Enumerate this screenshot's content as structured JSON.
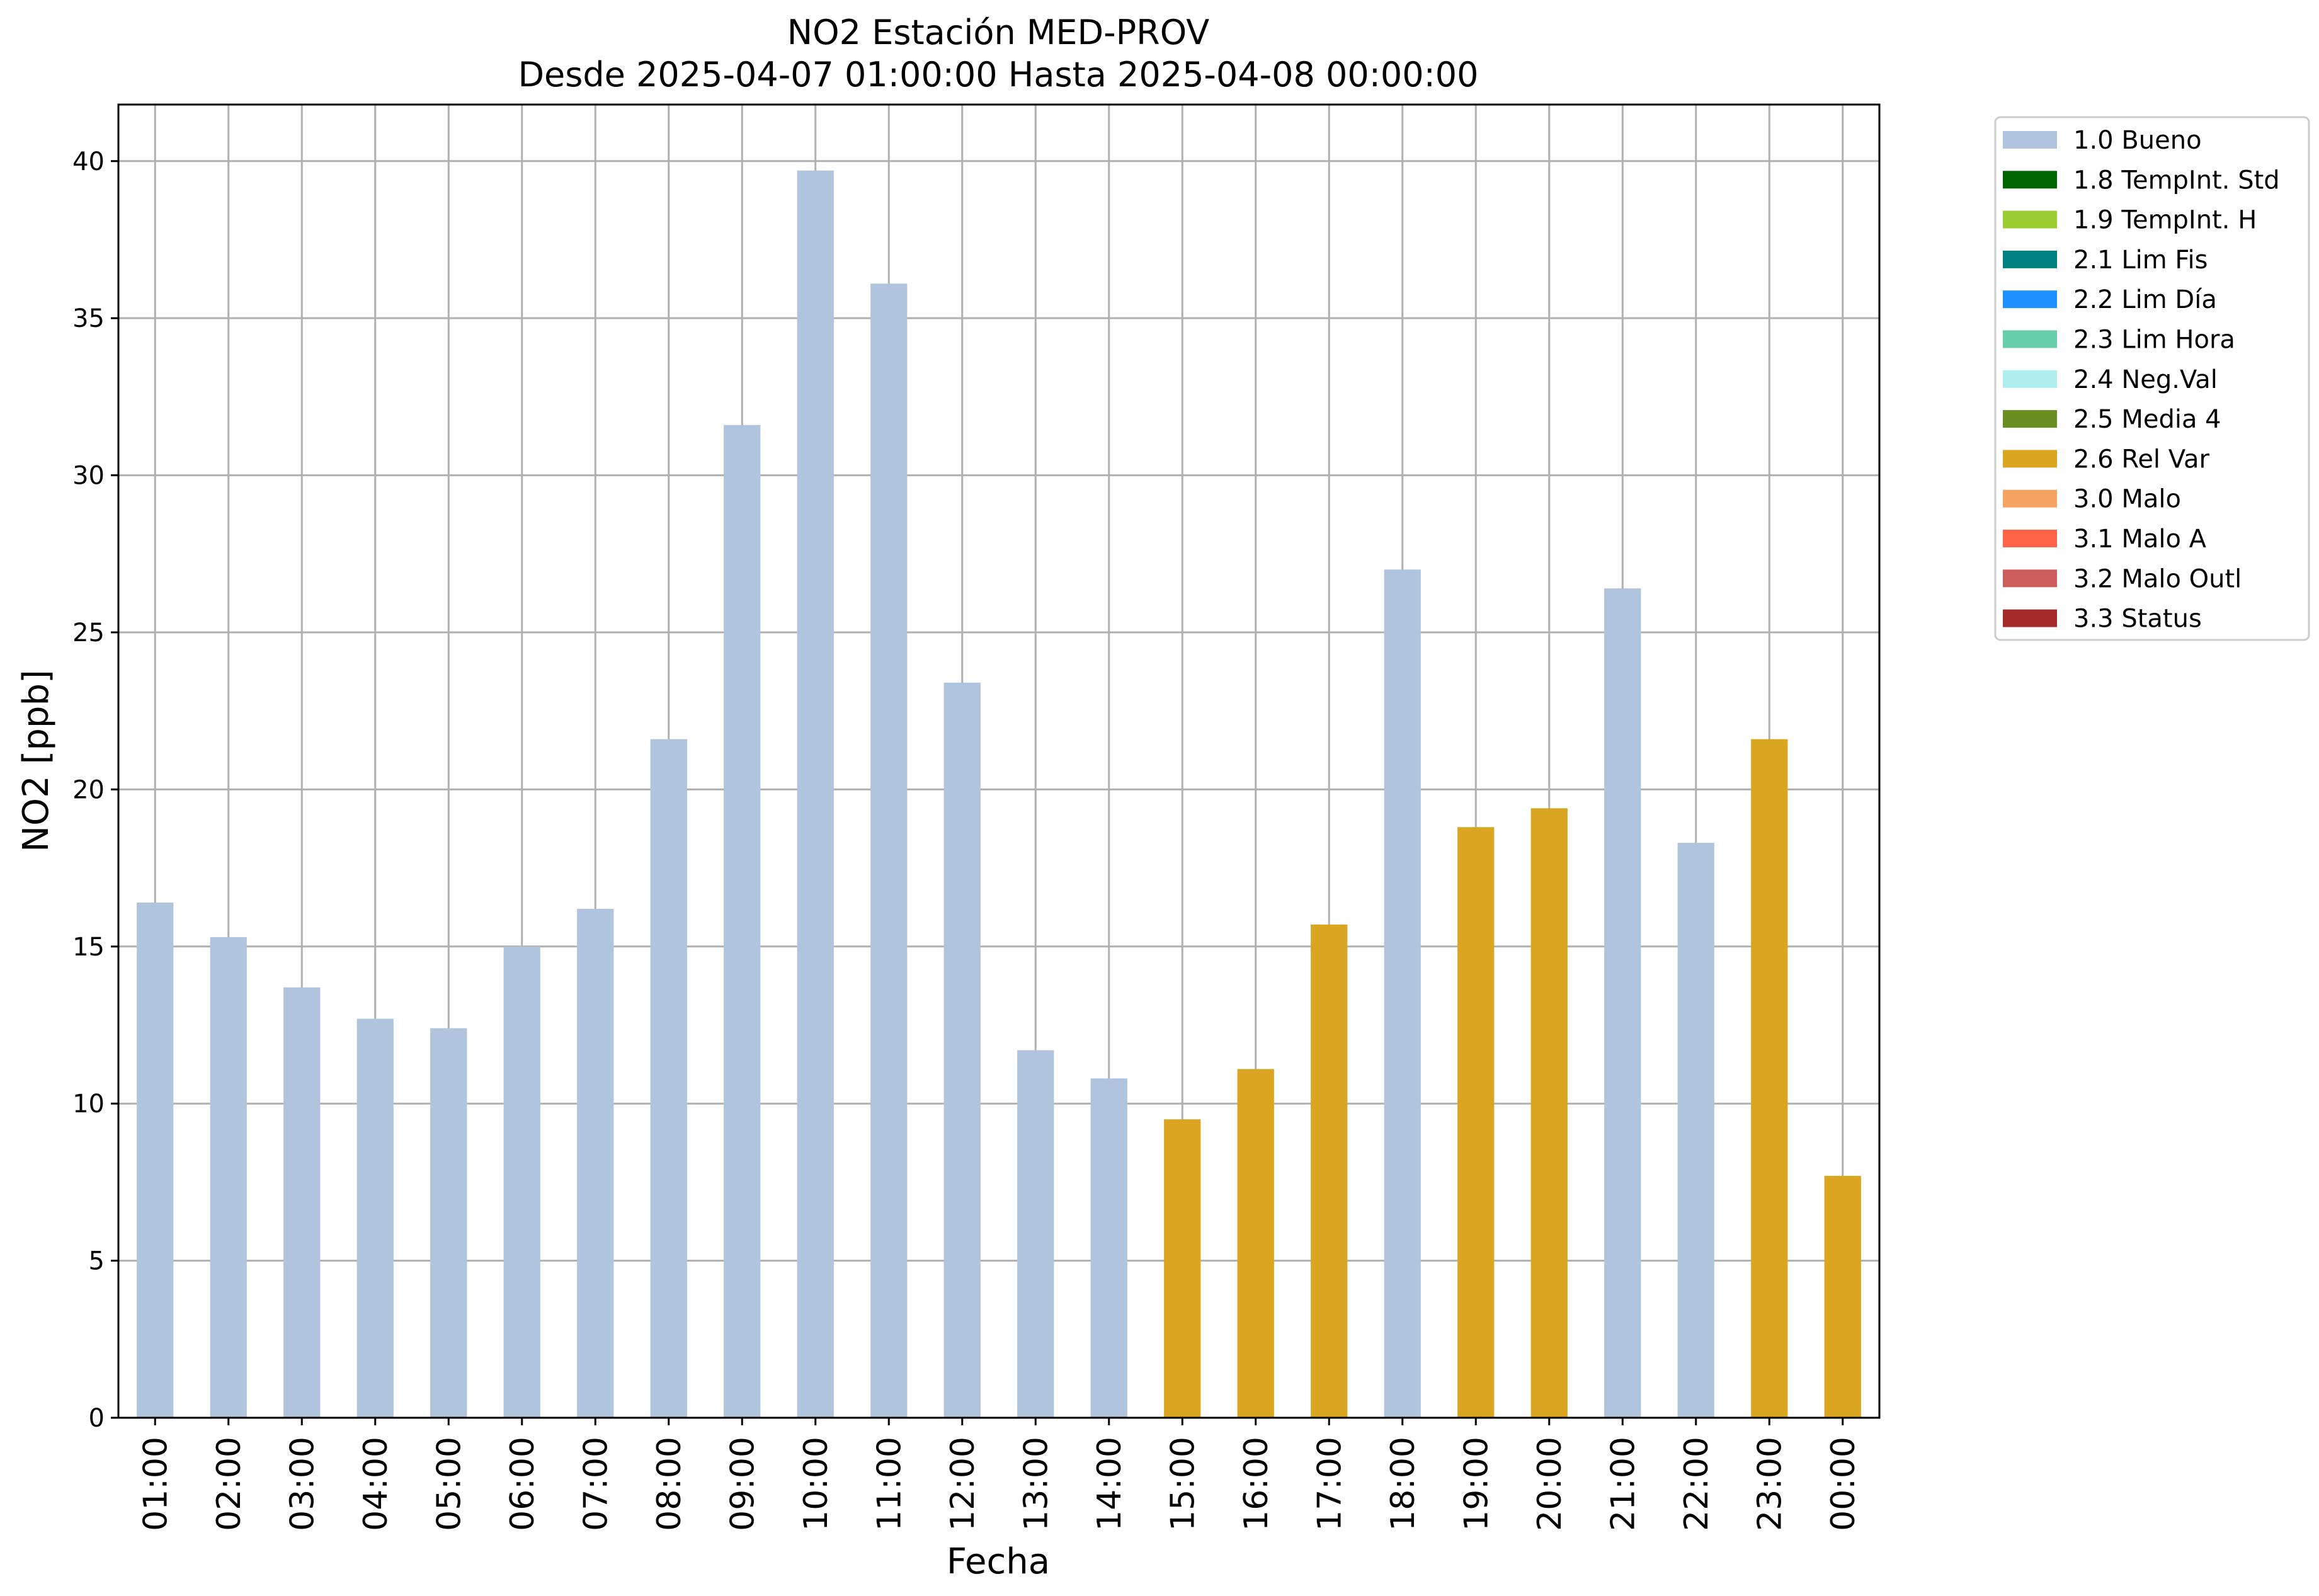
{
  "chart_data": {
    "type": "bar",
    "title": "NO2 Estación MED-PROV",
    "subtitle": "Desde 2025-04-07 01:00:00 Hasta 2025-04-08 00:00:00",
    "xlabel": "Fecha",
    "ylabel": "NO2 [ppb]",
    "ylim": [
      0,
      41.8
    ],
    "yticks": [
      0,
      5,
      10,
      15,
      20,
      25,
      30,
      35,
      40
    ],
    "grid": true,
    "legend_position": "outside-top-right",
    "categories": [
      "01:00",
      "02:00",
      "03:00",
      "04:00",
      "05:00",
      "06:00",
      "07:00",
      "08:00",
      "09:00",
      "10:00",
      "11:00",
      "12:00",
      "13:00",
      "14:00",
      "15:00",
      "16:00",
      "17:00",
      "18:00",
      "19:00",
      "20:00",
      "21:00",
      "22:00",
      "23:00",
      "00:00"
    ],
    "values": [
      16.4,
      15.3,
      13.7,
      12.7,
      12.4,
      15.0,
      16.2,
      21.6,
      31.6,
      39.7,
      36.1,
      23.4,
      11.7,
      10.8,
      9.5,
      11.1,
      15.7,
      27.0,
      18.8,
      19.4,
      26.4,
      18.3,
      21.6,
      7.7
    ],
    "flags": [
      "1.0 Bueno",
      "1.0 Bueno",
      "1.0 Bueno",
      "1.0 Bueno",
      "1.0 Bueno",
      "1.0 Bueno",
      "1.0 Bueno",
      "1.0 Bueno",
      "1.0 Bueno",
      "1.0 Bueno",
      "1.0 Bueno",
      "1.0 Bueno",
      "1.0 Bueno",
      "1.0 Bueno",
      "2.6 Rel Var",
      "2.6 Rel Var",
      "2.6 Rel Var",
      "1.0 Bueno",
      "2.6 Rel Var",
      "2.6 Rel Var",
      "1.0 Bueno",
      "1.0 Bueno",
      "2.6 Rel Var",
      "2.6 Rel Var"
    ],
    "legend": [
      {
        "name": "1.0 Bueno",
        "color": "#b0c4de"
      },
      {
        "name": "1.8 TempInt. Std",
        "color": "#006400"
      },
      {
        "name": "1.9 TempInt. H",
        "color": "#9acd32"
      },
      {
        "name": "2.1 Lim Fis",
        "color": "#008080"
      },
      {
        "name": "2.2 Lim Día",
        "color": "#1e90ff"
      },
      {
        "name": "2.3 Lim Hora",
        "color": "#66cdaa"
      },
      {
        "name": "2.4 Neg.Val",
        "color": "#afeeee"
      },
      {
        "name": "2.5 Media 4",
        "color": "#6b8e23"
      },
      {
        "name": "2.6 Rel Var",
        "color": "#daa520"
      },
      {
        "name": "3.0 Malo",
        "color": "#f4a460"
      },
      {
        "name": "3.1 Malo A",
        "color": "#ff6347"
      },
      {
        "name": "3.2 Malo Outl",
        "color": "#cd5c5c"
      },
      {
        "name": "3.3 Status",
        "color": "#a52a2a"
      }
    ]
  }
}
